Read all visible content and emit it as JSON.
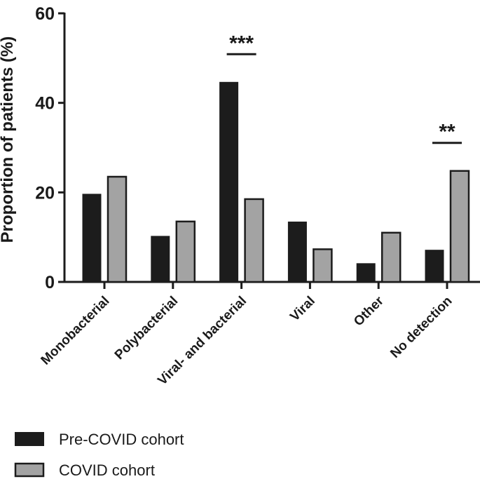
{
  "chart_data": {
    "type": "bar",
    "title": "",
    "xlabel": "",
    "ylabel": "Proportion of patients (%)",
    "ylim": [
      0,
      60
    ],
    "yticks": [
      0,
      20,
      40,
      60
    ],
    "categories": [
      "Monobacterial",
      "Polybacterial",
      "Viral- and bacterial",
      "Viral",
      "Other",
      "No detection"
    ],
    "series": [
      {
        "name": "Pre-COVID cohort",
        "color": "#1c1c1c",
        "values": [
          19.6,
          10.2,
          44.6,
          13.4,
          4.1,
          7.1
        ]
      },
      {
        "name": "COVID cohort",
        "color": "#a3a3a3",
        "values": [
          23.5,
          13.5,
          18.5,
          7.3,
          11.0,
          24.8
        ]
      }
    ],
    "significance": [
      {
        "category": "Viral- and bacterial",
        "label": "***"
      },
      {
        "category": "No detection",
        "label": "**"
      }
    ],
    "legend_position": "bottom-left"
  }
}
